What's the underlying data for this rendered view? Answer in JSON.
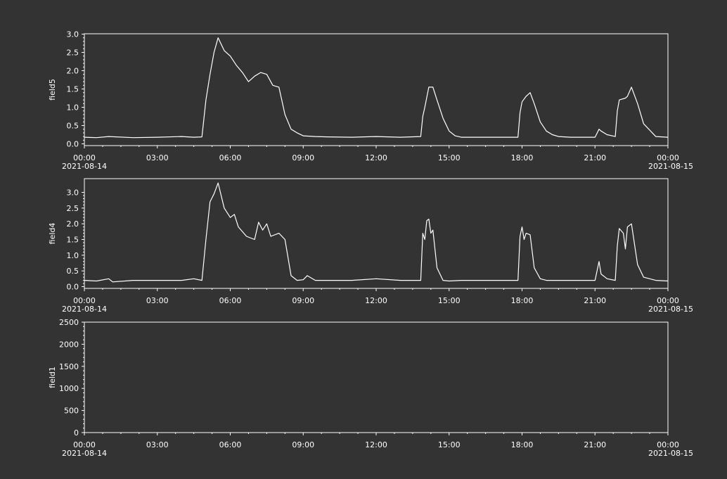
{
  "chart_data": [
    {
      "type": "line",
      "ylabel": "field5",
      "ylim": [
        0,
        3.0
      ],
      "yticks": [
        "0.0",
        "0.5",
        "1.0",
        "1.5",
        "2.0",
        "2.5",
        "3.0"
      ],
      "xlim": [
        "2021-08-14 00:00",
        "2021-08-15 00:00"
      ],
      "xticks": [
        "00:00",
        "03:00",
        "06:00",
        "09:00",
        "12:00",
        "15:00",
        "18:00",
        "21:00",
        "00:00"
      ],
      "xdates": {
        "start": "2021-08-14",
        "end": "2021-08-15"
      },
      "series": [
        {
          "x": [
            "00:00",
            "00:30",
            "01:00",
            "02:00",
            "03:00",
            "04:00",
            "04:30",
            "04:50",
            "05:00",
            "05:10",
            "05:20",
            "05:30",
            "05:45",
            "06:00",
            "06:15",
            "06:30",
            "06:45",
            "07:00",
            "07:15",
            "07:30",
            "07:45",
            "08:00",
            "08:15",
            "08:30",
            "08:45",
            "09:00",
            "09:30",
            "10:00",
            "11:00",
            "12:00",
            "13:00",
            "13:50",
            "13:55",
            "14:00",
            "14:10",
            "14:20",
            "14:30",
            "14:45",
            "15:00",
            "15:15",
            "15:30",
            "16:00",
            "17:00",
            "17:50",
            "17:55",
            "18:00",
            "18:10",
            "18:20",
            "18:30",
            "18:45",
            "19:00",
            "19:15",
            "19:30",
            "20:00",
            "21:00",
            "21:10",
            "21:15",
            "21:30",
            "21:50",
            "21:55",
            "22:00",
            "22:15",
            "22:20",
            "22:30",
            "22:45",
            "23:00",
            "23:30",
            "00:00"
          ],
          "values": [
            0.18,
            0.17,
            0.2,
            0.17,
            0.18,
            0.2,
            0.18,
            0.19,
            1.2,
            1.9,
            2.5,
            2.9,
            2.55,
            2.4,
            2.15,
            1.95,
            1.7,
            1.85,
            1.95,
            1.9,
            1.6,
            1.55,
            0.8,
            0.4,
            0.3,
            0.22,
            0.2,
            0.19,
            0.18,
            0.2,
            0.18,
            0.2,
            0.75,
            1.0,
            1.55,
            1.55,
            1.2,
            0.7,
            0.35,
            0.22,
            0.18,
            0.18,
            0.18,
            0.18,
            0.85,
            1.15,
            1.3,
            1.4,
            1.1,
            0.6,
            0.35,
            0.25,
            0.2,
            0.18,
            0.18,
            0.4,
            0.35,
            0.25,
            0.2,
            0.9,
            1.2,
            1.25,
            1.3,
            1.55,
            1.1,
            0.55,
            0.2,
            0.18
          ]
        }
      ]
    },
    {
      "type": "line",
      "ylabel": "field4",
      "ylim": [
        0,
        3.0
      ],
      "yticks": [
        "0.0",
        "0.5",
        "1.0",
        "1.5",
        "2.0",
        "2.5",
        "3.0"
      ],
      "xlim": [
        "2021-08-14 00:00",
        "2021-08-15 00:00"
      ],
      "xticks": [
        "00:00",
        "03:00",
        "06:00",
        "09:00",
        "12:00",
        "15:00",
        "18:00",
        "21:00",
        "00:00"
      ],
      "xdates": {
        "start": "2021-08-14",
        "end": "2021-08-15"
      },
      "series": [
        {
          "x": [
            "00:00",
            "00:30",
            "01:00",
            "01:10",
            "02:00",
            "03:00",
            "04:00",
            "04:30",
            "04:50",
            "05:00",
            "05:10",
            "05:20",
            "05:30",
            "05:45",
            "06:00",
            "06:10",
            "06:20",
            "06:40",
            "07:00",
            "07:10",
            "07:20",
            "07:30",
            "07:40",
            "08:00",
            "08:15",
            "08:30",
            "08:45",
            "09:00",
            "09:10",
            "09:30",
            "10:00",
            "11:00",
            "12:00",
            "13:00",
            "13:50",
            "13:55",
            "14:00",
            "14:05",
            "14:10",
            "14:15",
            "14:20",
            "14:30",
            "14:45",
            "15:00",
            "15:30",
            "16:00",
            "17:00",
            "17:50",
            "17:55",
            "18:00",
            "18:05",
            "18:10",
            "18:20",
            "18:30",
            "18:45",
            "19:00",
            "19:30",
            "20:00",
            "21:00",
            "21:10",
            "21:15",
            "21:30",
            "21:50",
            "21:55",
            "22:00",
            "22:10",
            "22:15",
            "22:20",
            "22:30",
            "22:45",
            "23:00",
            "23:30",
            "00:00"
          ],
          "values": [
            0.2,
            0.18,
            0.25,
            0.15,
            0.2,
            0.2,
            0.2,
            0.25,
            0.2,
            1.5,
            2.7,
            2.95,
            3.3,
            2.5,
            2.2,
            2.3,
            1.9,
            1.6,
            1.5,
            2.05,
            1.8,
            2.0,
            1.6,
            1.7,
            1.5,
            0.35,
            0.2,
            0.22,
            0.35,
            0.2,
            0.2,
            0.2,
            0.25,
            0.2,
            0.2,
            1.7,
            1.5,
            2.1,
            2.15,
            1.7,
            1.8,
            0.6,
            0.2,
            0.18,
            0.2,
            0.2,
            0.2,
            0.2,
            1.6,
            1.9,
            1.5,
            1.7,
            1.65,
            0.6,
            0.25,
            0.2,
            0.2,
            0.2,
            0.2,
            0.8,
            0.4,
            0.25,
            0.2,
            1.3,
            1.85,
            1.7,
            1.2,
            1.9,
            2.0,
            0.7,
            0.3,
            0.2,
            0.18
          ]
        }
      ]
    },
    {
      "type": "line",
      "ylabel": "field1",
      "ylim": [
        0,
        2500
      ],
      "yticks": [
        "0",
        "500",
        "1000",
        "1500",
        "2000",
        "2500"
      ],
      "xlim": [
        "2021-08-14 00:00",
        "2021-08-15 00:00"
      ],
      "xticks": [
        "00:00",
        "03:00",
        "06:00",
        "09:00",
        "12:00",
        "15:00",
        "18:00",
        "21:00",
        "00:00"
      ],
      "xdates": {
        "start": "2021-08-14",
        "end": "2021-08-15"
      },
      "series": []
    }
  ]
}
